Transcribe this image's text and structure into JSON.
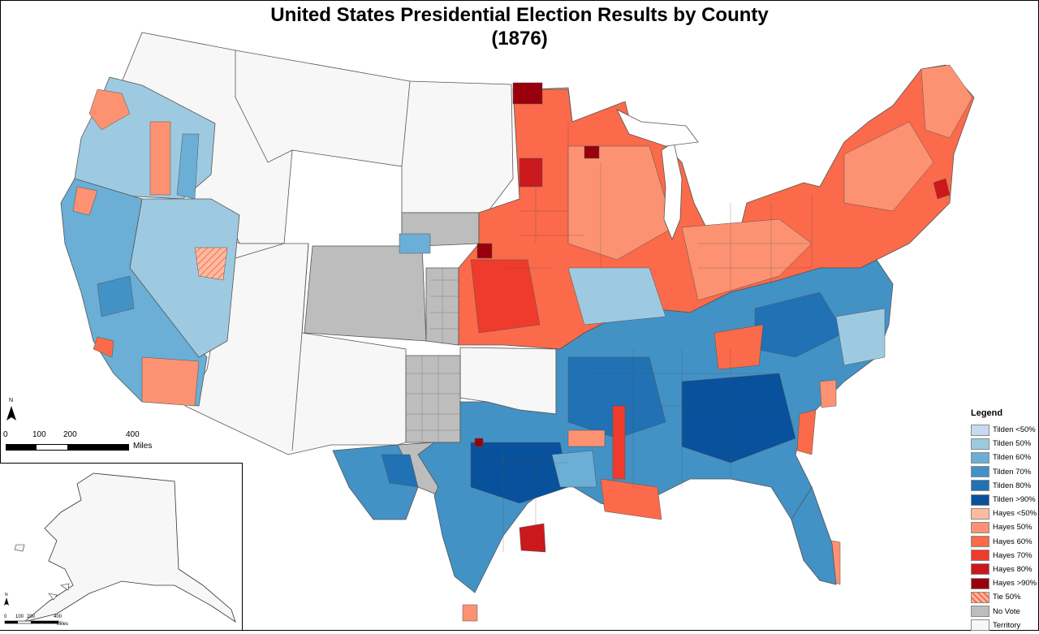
{
  "title": {
    "line1": "United States Presidential Election Results by County",
    "line2": "(1876)"
  },
  "legend": {
    "heading": "Legend",
    "items": [
      {
        "label": "Tilden <50%",
        "color": "#c6dbef"
      },
      {
        "label": "Tilden 50%",
        "color": "#9ecae1"
      },
      {
        "label": "Tilden 60%",
        "color": "#6baed6"
      },
      {
        "label": "Tilden 70%",
        "color": "#4292c6"
      },
      {
        "label": "Tilden 80%",
        "color": "#2171b5"
      },
      {
        "label": "Tilden >90%",
        "color": "#08519c"
      },
      {
        "label": "Hayes <50%",
        "color": "#fcbba1"
      },
      {
        "label": "Hayes 50%",
        "color": "#fc9272"
      },
      {
        "label": "Hayes 60%",
        "color": "#fb6a4a"
      },
      {
        "label": "Hayes 70%",
        "color": "#ef3b2c"
      },
      {
        "label": "Hayes 80%",
        "color": "#cb181d"
      },
      {
        "label": "Hayes >90%",
        "color": "#99000d"
      },
      {
        "label": "Tie 50%",
        "color": "#f4a48c",
        "pattern": "hatch"
      },
      {
        "label": "No Vote",
        "color": "#bdbdbd"
      },
      {
        "label": "Territory",
        "color": "#f7f7f7"
      }
    ]
  },
  "north_arrow": {
    "label": "N"
  },
  "scale_bar": {
    "ticks": [
      "0",
      "100",
      "200",
      "400"
    ],
    "unit": "Miles"
  },
  "inset_scale": {
    "ticks": [
      "0",
      "100",
      "200",
      "400"
    ],
    "unit": "Miles"
  },
  "inset_north": {
    "label": "N"
  }
}
